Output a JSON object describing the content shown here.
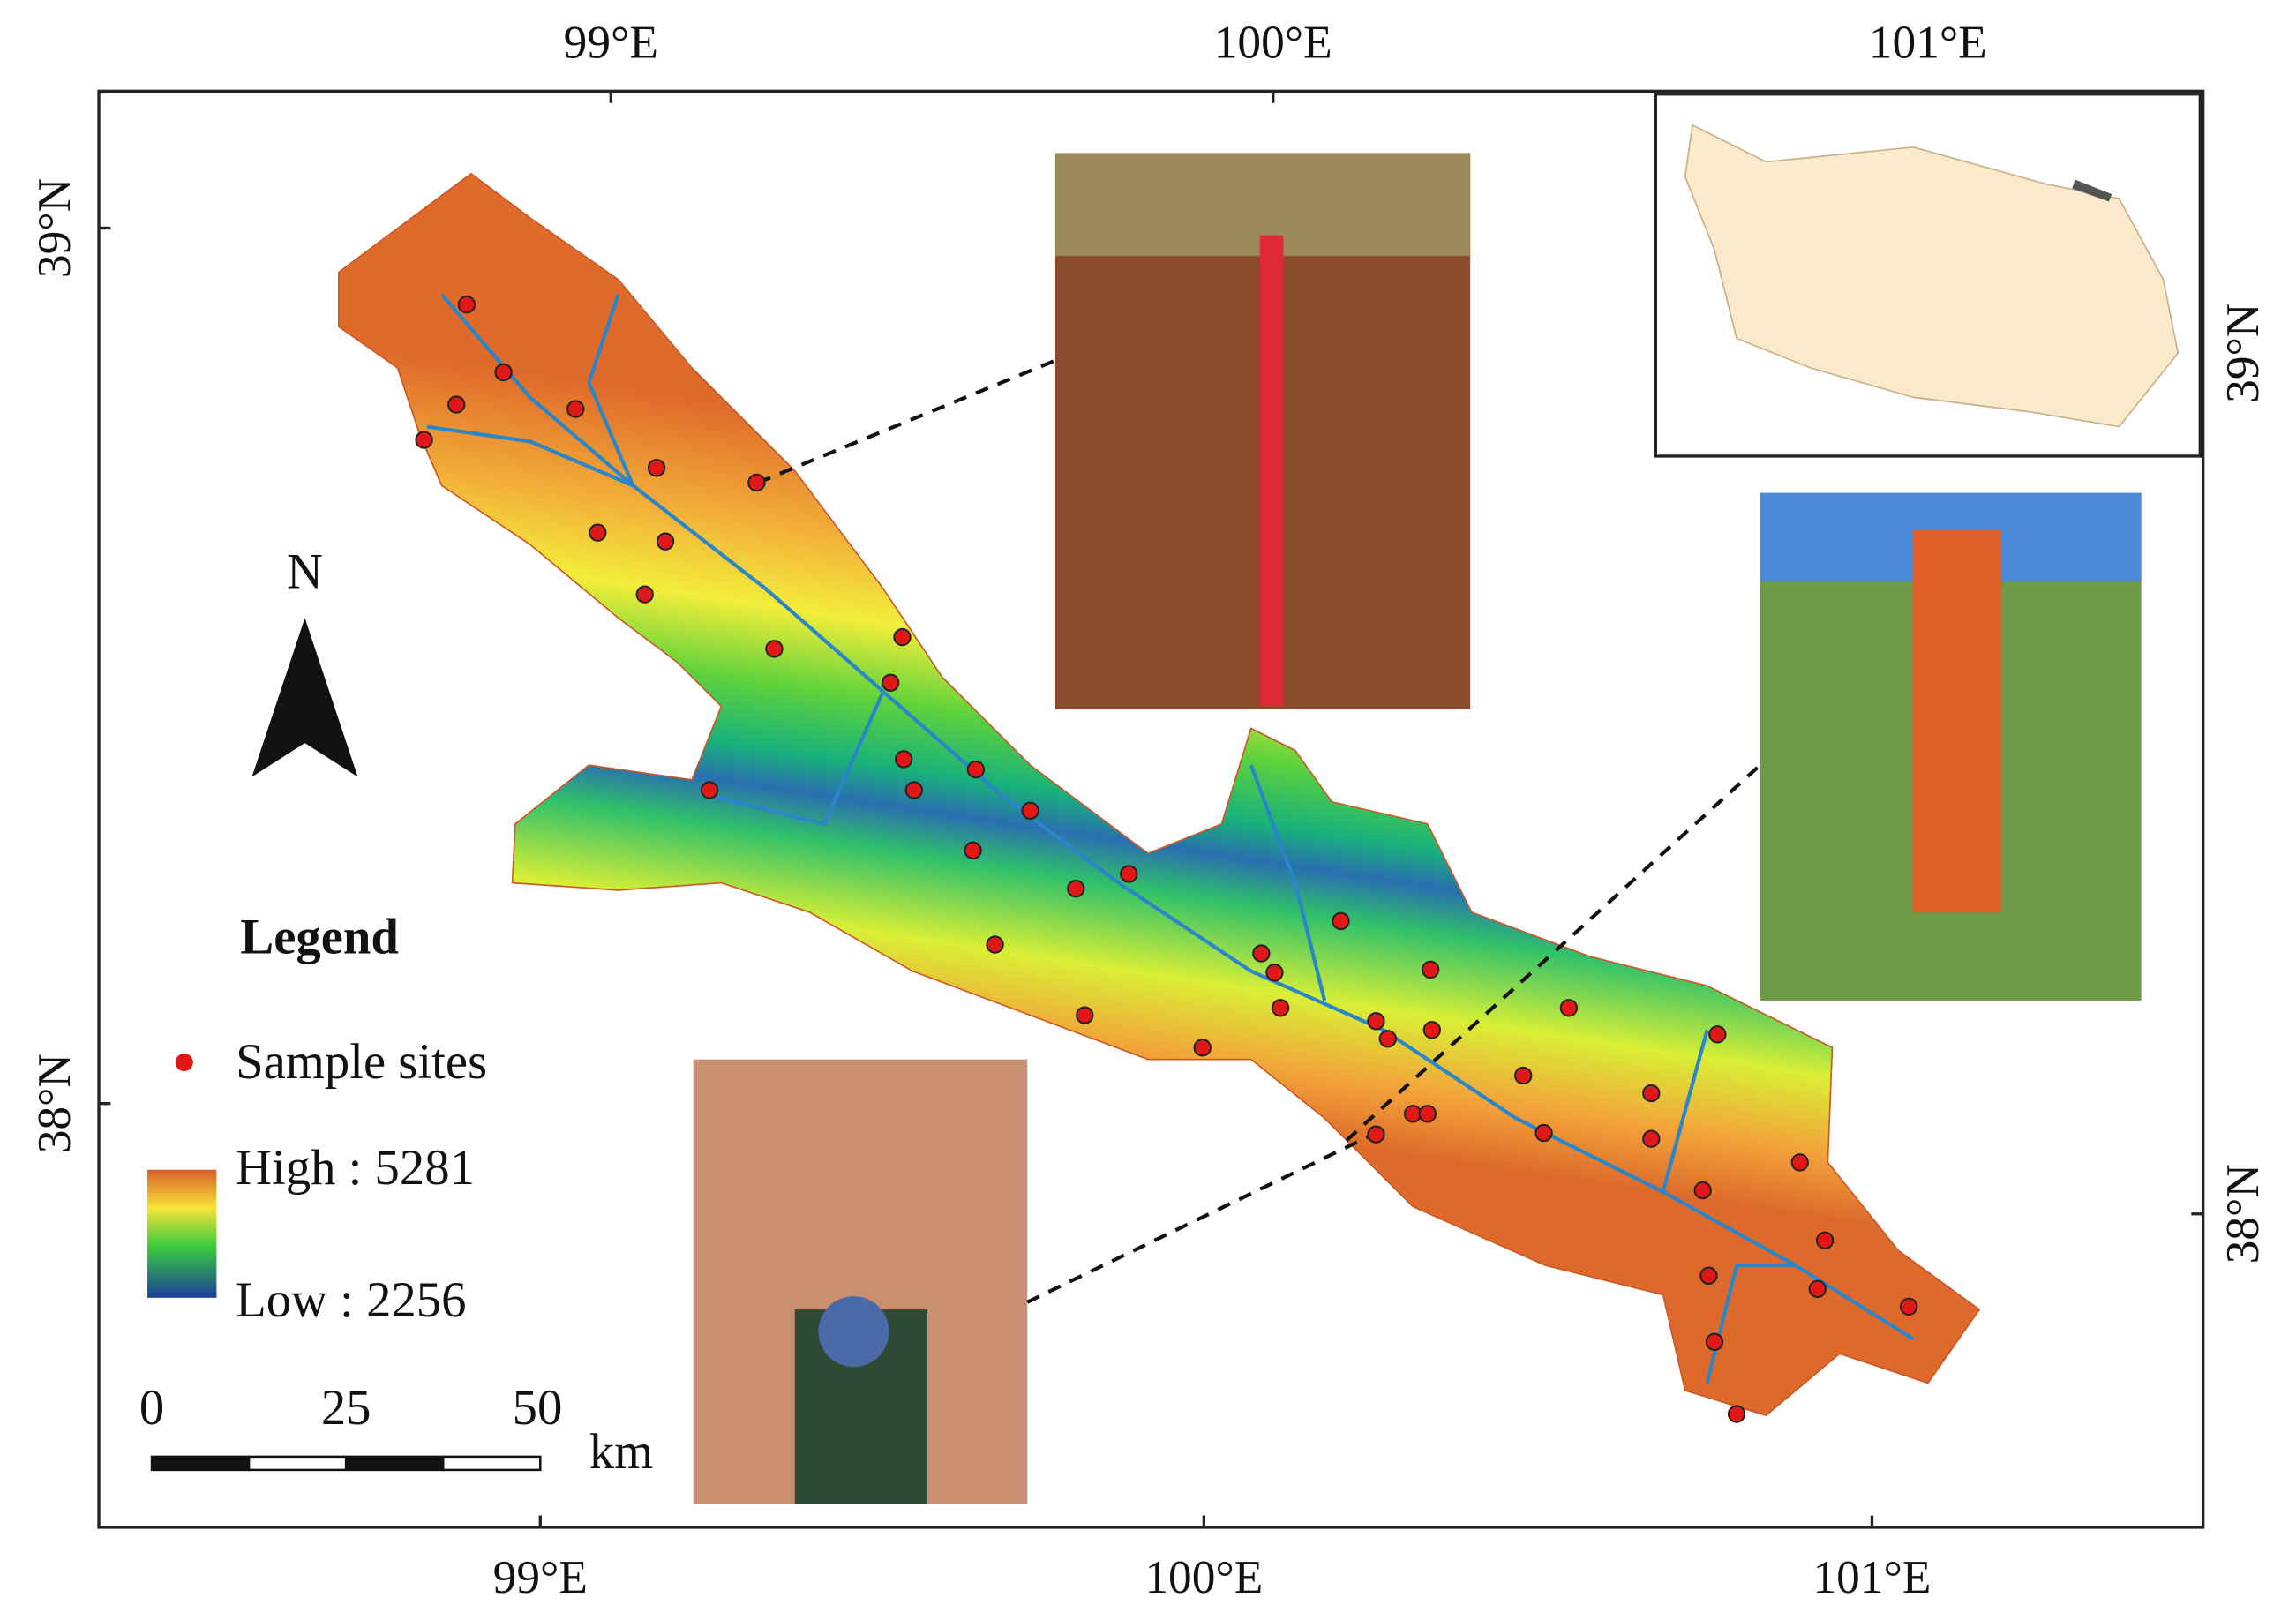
{
  "axes": {
    "top": [
      "99°E",
      "100°E",
      "101°E"
    ],
    "bottom": [
      "99°E",
      "100°E",
      "101°E"
    ],
    "left": [
      "39°N",
      "38°N"
    ],
    "right": [
      "39°N",
      "38°N"
    ]
  },
  "north_arrow": {
    "label": "N"
  },
  "legend": {
    "title": "Legend",
    "points": "Sample sites",
    "high": "High : 5281",
    "low": "Low : 2256"
  },
  "scale_bar": {
    "ticks": [
      "0",
      "25",
      "50"
    ],
    "unit": "km"
  }
}
